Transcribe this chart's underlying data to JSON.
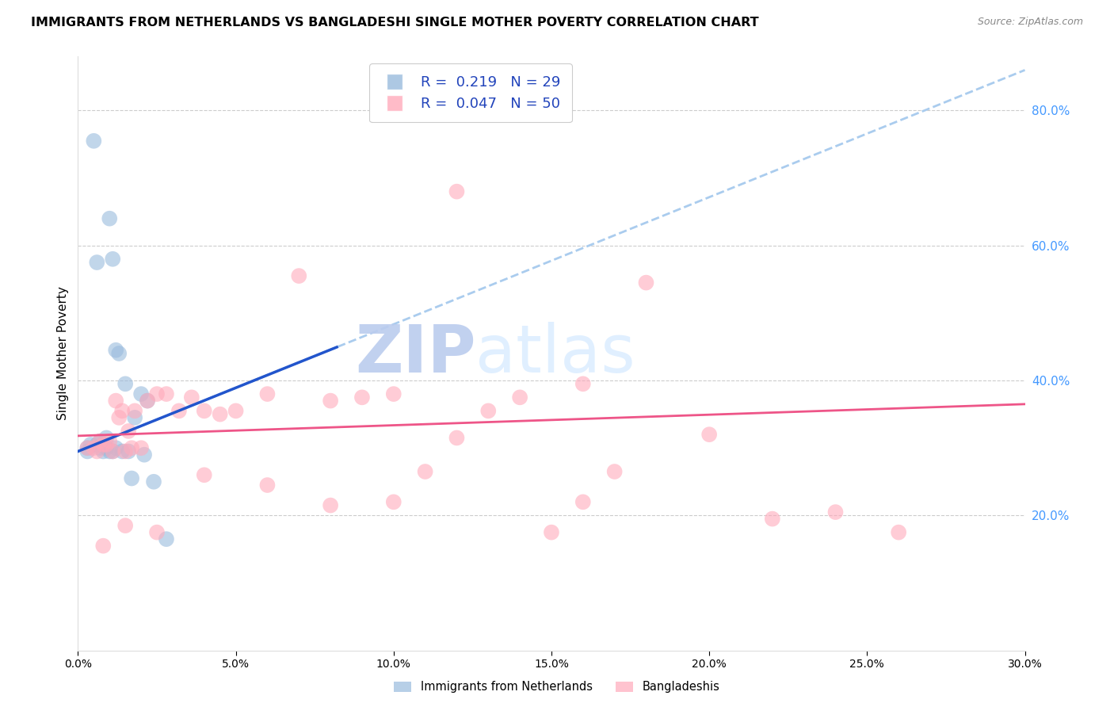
{
  "title": "IMMIGRANTS FROM NETHERLANDS VS BANGLADESHI SINGLE MOTHER POVERTY CORRELATION CHART",
  "source": "Source: ZipAtlas.com",
  "ylabel": "Single Mother Poverty",
  "xmin": 0.0,
  "xmax": 0.3,
  "ymin": 0.0,
  "ymax": 0.88,
  "netherlands_R": 0.219,
  "netherlands_N": 29,
  "bangladeshi_R": 0.047,
  "bangladeshi_N": 50,
  "legend_label_netherlands": "Immigrants from Netherlands",
  "legend_label_bangladeshi": "Bangladeshis",
  "netherlands_color": "#99BBDD",
  "bangladeshi_color": "#FFAABB",
  "netherlands_line_color": "#2255CC",
  "bangladeshi_line_color": "#EE5588",
  "dashed_line_color": "#AACCEE",
  "watermark_zip": "ZIP",
  "watermark_atlas": "atlas",
  "watermark_color": "#DDEEFF",
  "nl_x": [
    0.003,
    0.003,
    0.004,
    0.005,
    0.006,
    0.006,
    0.007,
    0.007,
    0.008,
    0.008,
    0.009,
    0.009,
    0.01,
    0.01,
    0.011,
    0.011,
    0.012,
    0.012,
    0.013,
    0.014,
    0.015,
    0.016,
    0.017,
    0.018,
    0.02,
    0.021,
    0.022,
    0.024,
    0.028
  ],
  "nl_y": [
    0.3,
    0.295,
    0.305,
    0.755,
    0.575,
    0.305,
    0.31,
    0.3,
    0.305,
    0.295,
    0.315,
    0.3,
    0.64,
    0.295,
    0.58,
    0.295,
    0.445,
    0.3,
    0.44,
    0.295,
    0.395,
    0.295,
    0.255,
    0.345,
    0.38,
    0.29,
    0.37,
    0.25,
    0.165
  ],
  "bd_x": [
    0.003,
    0.005,
    0.006,
    0.007,
    0.008,
    0.009,
    0.01,
    0.011,
    0.012,
    0.013,
    0.014,
    0.015,
    0.016,
    0.017,
    0.018,
    0.02,
    0.022,
    0.025,
    0.028,
    0.032,
    0.036,
    0.04,
    0.045,
    0.05,
    0.06,
    0.07,
    0.08,
    0.09,
    0.1,
    0.11,
    0.12,
    0.13,
    0.15,
    0.16,
    0.17,
    0.18,
    0.12,
    0.14,
    0.16,
    0.2,
    0.22,
    0.24,
    0.26,
    0.1,
    0.08,
    0.06,
    0.04,
    0.025,
    0.015,
    0.008
  ],
  "bd_y": [
    0.3,
    0.3,
    0.295,
    0.31,
    0.305,
    0.305,
    0.31,
    0.295,
    0.37,
    0.345,
    0.355,
    0.295,
    0.325,
    0.3,
    0.355,
    0.3,
    0.37,
    0.38,
    0.38,
    0.355,
    0.375,
    0.355,
    0.35,
    0.355,
    0.38,
    0.555,
    0.37,
    0.375,
    0.38,
    0.265,
    0.315,
    0.355,
    0.175,
    0.395,
    0.265,
    0.545,
    0.68,
    0.375,
    0.22,
    0.32,
    0.195,
    0.205,
    0.175,
    0.22,
    0.215,
    0.245,
    0.26,
    0.175,
    0.185,
    0.155
  ]
}
